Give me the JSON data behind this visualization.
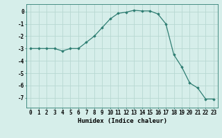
{
  "x": [
    0,
    1,
    2,
    3,
    4,
    5,
    6,
    7,
    8,
    9,
    10,
    11,
    12,
    13,
    14,
    15,
    16,
    17,
    18,
    19,
    20,
    21,
    22,
    23
  ],
  "y": [
    -3,
    -3,
    -3,
    -3,
    -3.2,
    -3,
    -3,
    -2.5,
    -2.0,
    -1.3,
    -0.6,
    -0.15,
    -0.05,
    0.1,
    0.05,
    0.05,
    -0.2,
    -1.0,
    -3.5,
    -4.5,
    -5.8,
    -6.2,
    -7.1,
    -7.1
  ],
  "line_color": "#2e7d72",
  "marker": "D",
  "marker_size": 1.8,
  "bg_color": "#d6eeea",
  "grid_color": "#b8d8d2",
  "xlabel": "Humidex (Indice chaleur)",
  "xlim": [
    -0.5,
    23.5
  ],
  "ylim": [
    -7.8,
    0.6
  ],
  "yticks": [
    0,
    -1,
    -2,
    -3,
    -4,
    -5,
    -6,
    -7
  ],
  "xticks": [
    0,
    1,
    2,
    3,
    4,
    5,
    6,
    7,
    8,
    9,
    10,
    11,
    12,
    13,
    14,
    15,
    16,
    17,
    18,
    19,
    20,
    21,
    22,
    23
  ],
  "tick_fontsize": 5.5,
  "label_fontsize": 6.5
}
